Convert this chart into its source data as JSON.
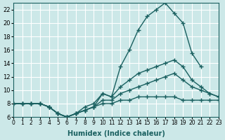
{
  "xlabel": "Humidex (Indice chaleur)",
  "ylabel": "",
  "bg_color": "#cce8e8",
  "line_color": "#1a6060",
  "grid_color": "#ffffff",
  "ylim": [
    6,
    23
  ],
  "xlim": [
    0,
    23
  ],
  "yticks": [
    6,
    8,
    10,
    12,
    14,
    16,
    18,
    20,
    22
  ],
  "xticks": [
    0,
    1,
    2,
    3,
    4,
    5,
    6,
    7,
    8,
    9,
    10,
    11,
    12,
    13,
    14,
    15,
    16,
    17,
    18,
    19,
    20,
    21,
    22,
    23
  ],
  "xtick_labels": [
    "0",
    "1",
    "2",
    "3",
    "4",
    "5",
    "6",
    "7",
    "8",
    "9",
    "10",
    "11",
    "12",
    "13",
    "14",
    "15",
    "16",
    "17",
    "18",
    "19",
    "20",
    "21",
    "22",
    "23"
  ],
  "lines": [
    [
      8.0,
      8.0,
      8.0,
      8.0,
      7.5,
      6.5,
      6.0,
      6.5,
      7.5,
      8.0,
      9.5,
      9.0,
      13.5,
      16.0,
      19.0,
      21.0,
      22.0,
      23.0,
      21.5,
      20.0,
      15.5,
      13.5,
      null,
      null
    ],
    [
      8.0,
      8.0,
      8.0,
      8.0,
      7.5,
      6.5,
      6.0,
      6.5,
      7.0,
      7.5,
      9.5,
      9.0,
      10.5,
      11.5,
      12.5,
      13.0,
      13.5,
      14.0,
      14.5,
      13.5,
      11.5,
      10.5,
      9.5,
      9.0
    ],
    [
      8.0,
      8.0,
      8.0,
      8.0,
      7.5,
      6.5,
      6.0,
      6.5,
      7.0,
      7.5,
      8.5,
      8.5,
      9.5,
      10.0,
      10.5,
      11.0,
      11.5,
      12.0,
      12.5,
      11.5,
      10.5,
      10.0,
      9.5,
      9.0
    ],
    [
      8.0,
      8.0,
      8.0,
      8.0,
      7.5,
      6.5,
      6.0,
      6.5,
      7.0,
      7.5,
      8.0,
      8.0,
      8.5,
      8.5,
      9.0,
      9.0,
      9.0,
      9.0,
      9.0,
      8.5,
      8.5,
      8.5,
      8.5,
      8.5
    ]
  ]
}
